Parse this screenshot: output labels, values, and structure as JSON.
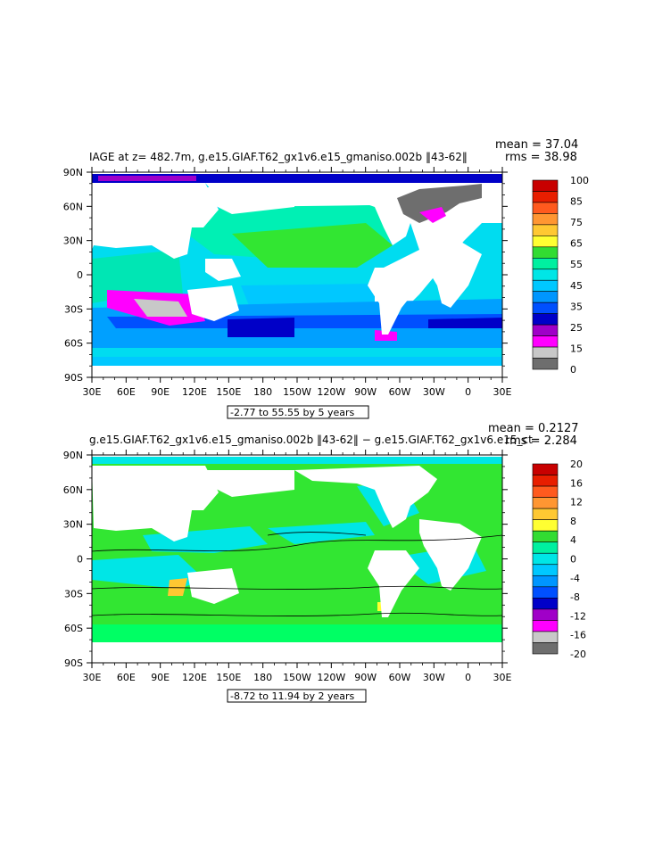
{
  "chart_data": [
    {
      "type": "heatmap",
      "title": "IAGE at z= 482.7m, g.e15.GIAF.T62_gx1v6.e15_gmaniso.002b ‖43-62‖",
      "mean_text": "mean = 37.04",
      "rms_text": "rms = 38.98",
      "range_text": "-2.77 to 55.55 by 5 years",
      "x_ticks": [
        "30E",
        "60E",
        "90E",
        "120E",
        "150E",
        "180",
        "150W",
        "120W",
        "90W",
        "60W",
        "30W",
        "0",
        "30E"
      ],
      "y_ticks": [
        "90N",
        "60N",
        "30N",
        "0",
        "30S",
        "60S",
        "90S"
      ],
      "colorbar": {
        "labels": [
          "100",
          "85",
          "75",
          "65",
          "55",
          "45",
          "35",
          "25",
          "15",
          "0"
        ],
        "colors": [
          "#c80000",
          "#e81e00",
          "#ff5a1e",
          "#ff9632",
          "#ffc832",
          "#ffff32",
          "#32dc32",
          "#00f0a0",
          "#00e6e6",
          "#00c8ff",
          "#0096ff",
          "#0050ff",
          "#0000c8",
          "#a000c8",
          "#ff00ff",
          "#c8c8c8",
          "#6e6e6e"
        ]
      }
    },
    {
      "type": "heatmap",
      "title": "g.e15.GIAF.T62_gx1v6.e15_gmaniso.002b ‖43-62‖ − g.e15.GIAF.T62_gx1v6.e15_ct",
      "mean_text": "mean = 0.2127",
      "rms_text": "rms = 2.284",
      "range_text": "-8.72 to 11.94 by 2 years",
      "x_ticks": [
        "30E",
        "60E",
        "90E",
        "120E",
        "150E",
        "180",
        "150W",
        "120W",
        "90W",
        "60W",
        "30W",
        "0",
        "30E"
      ],
      "y_ticks": [
        "90N",
        "60N",
        "30N",
        "0",
        "30S",
        "60S",
        "90S"
      ],
      "colorbar": {
        "labels": [
          "20",
          "16",
          "12",
          "8",
          "4",
          "0",
          "-4",
          "-8",
          "-12",
          "-16",
          "-20"
        ],
        "colors": [
          "#c80000",
          "#e81e00",
          "#ff5a1e",
          "#ff9632",
          "#ffc832",
          "#ffff32",
          "#32dc32",
          "#00f0a0",
          "#00e6e6",
          "#00c8ff",
          "#0096ff",
          "#0050ff",
          "#0000c8",
          "#a000c8",
          "#ff00ff",
          "#c8c8c8",
          "#6e6e6e"
        ]
      }
    }
  ]
}
